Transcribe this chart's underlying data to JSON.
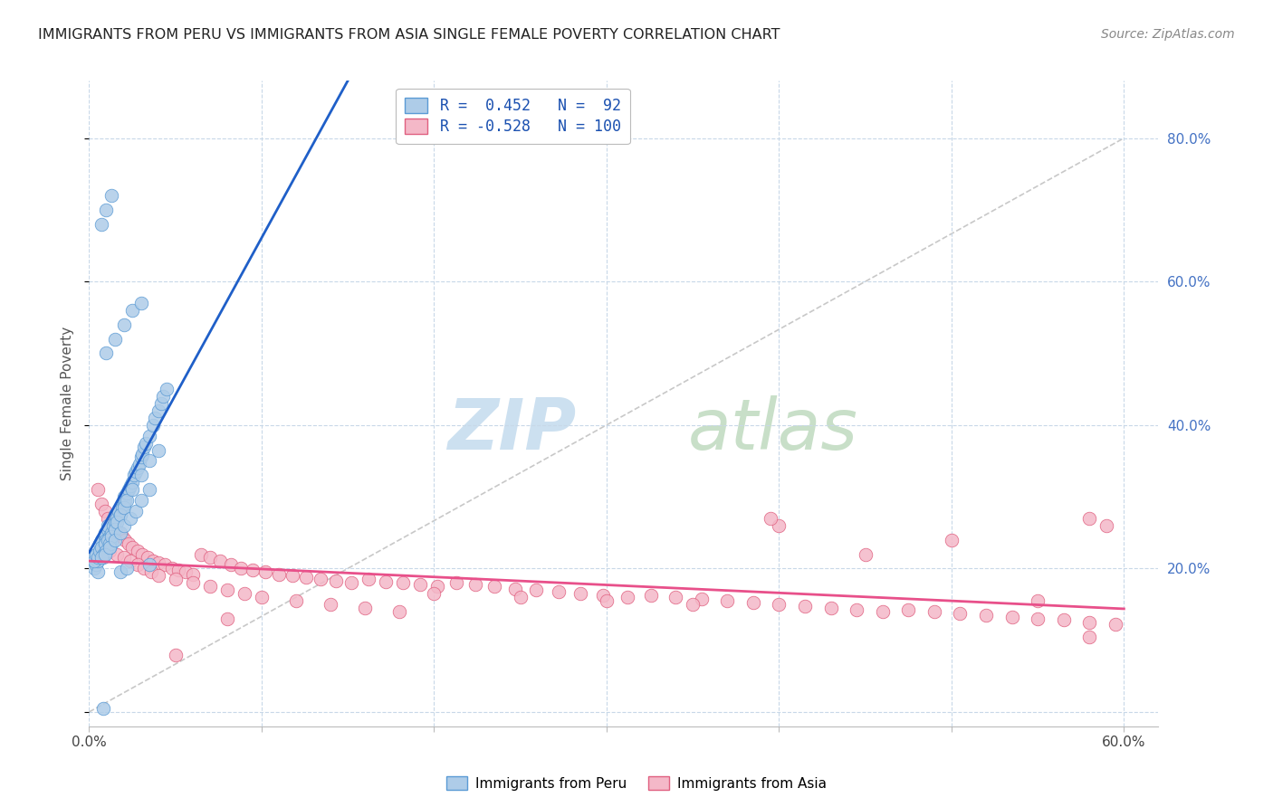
{
  "title": "IMMIGRANTS FROM PERU VS IMMIGRANTS FROM ASIA SINGLE FEMALE POVERTY CORRELATION CHART",
  "source": "Source: ZipAtlas.com",
  "ylabel": "Single Female Poverty",
  "xlim": [
    0.0,
    0.62
  ],
  "ylim": [
    -0.02,
    0.88
  ],
  "xlim_display_max": 0.6,
  "ylim_display_max": 0.8,
  "peru_color": "#aecce8",
  "peru_edge_color": "#5b9bd5",
  "asia_color": "#f4b8c8",
  "asia_edge_color": "#e06080",
  "peru_line_color": "#1f5fc8",
  "asia_line_color": "#e8508a",
  "diag_line_color": "#c8c8c8",
  "background_color": "#ffffff",
  "grid_color": "#c8d8e8",
  "right_tick_color": "#4472c4",
  "watermark_zip_color": "#cce0f0",
  "watermark_atlas_color": "#c8dfc8",
  "peru_R": 0.452,
  "peru_N": 92,
  "asia_R": -0.528,
  "asia_N": 100,
  "peru_scatter_x": [
    0.002,
    0.003,
    0.004,
    0.005,
    0.005,
    0.006,
    0.006,
    0.007,
    0.007,
    0.008,
    0.008,
    0.009,
    0.009,
    0.01,
    0.01,
    0.011,
    0.011,
    0.012,
    0.012,
    0.013,
    0.013,
    0.014,
    0.015,
    0.015,
    0.016,
    0.017,
    0.018,
    0.019,
    0.02,
    0.02,
    0.021,
    0.022,
    0.023,
    0.024,
    0.025,
    0.026,
    0.027,
    0.028,
    0.029,
    0.03,
    0.031,
    0.032,
    0.033,
    0.035,
    0.037,
    0.038,
    0.04,
    0.042,
    0.043,
    0.045,
    0.003,
    0.004,
    0.005,
    0.006,
    0.007,
    0.008,
    0.009,
    0.01,
    0.011,
    0.012,
    0.013,
    0.015,
    0.016,
    0.018,
    0.02,
    0.022,
    0.025,
    0.03,
    0.035,
    0.04,
    0.007,
    0.009,
    0.012,
    0.015,
    0.018,
    0.02,
    0.024,
    0.027,
    0.03,
    0.035,
    0.01,
    0.015,
    0.02,
    0.025,
    0.03,
    0.007,
    0.01,
    0.013,
    0.008,
    0.018,
    0.022,
    0.035
  ],
  "peru_scatter_y": [
    0.215,
    0.2,
    0.205,
    0.195,
    0.21,
    0.225,
    0.235,
    0.22,
    0.24,
    0.215,
    0.23,
    0.245,
    0.25,
    0.225,
    0.24,
    0.255,
    0.26,
    0.23,
    0.245,
    0.235,
    0.25,
    0.26,
    0.265,
    0.275,
    0.27,
    0.28,
    0.275,
    0.285,
    0.29,
    0.3,
    0.295,
    0.305,
    0.31,
    0.315,
    0.32,
    0.33,
    0.335,
    0.34,
    0.345,
    0.355,
    0.36,
    0.37,
    0.375,
    0.385,
    0.4,
    0.41,
    0.42,
    0.43,
    0.44,
    0.45,
    0.21,
    0.22,
    0.215,
    0.225,
    0.23,
    0.22,
    0.235,
    0.225,
    0.24,
    0.235,
    0.245,
    0.255,
    0.265,
    0.275,
    0.285,
    0.295,
    0.31,
    0.33,
    0.35,
    0.365,
    0.215,
    0.22,
    0.23,
    0.24,
    0.25,
    0.26,
    0.27,
    0.28,
    0.295,
    0.31,
    0.5,
    0.52,
    0.54,
    0.56,
    0.57,
    0.68,
    0.7,
    0.72,
    0.005,
    0.195,
    0.2,
    0.205
  ],
  "asia_scatter_x": [
    0.005,
    0.007,
    0.009,
    0.011,
    0.013,
    0.015,
    0.017,
    0.019,
    0.021,
    0.023,
    0.025,
    0.028,
    0.031,
    0.034,
    0.037,
    0.04,
    0.044,
    0.048,
    0.052,
    0.056,
    0.06,
    0.065,
    0.07,
    0.076,
    0.082,
    0.088,
    0.095,
    0.102,
    0.11,
    0.118,
    0.126,
    0.134,
    0.143,
    0.152,
    0.162,
    0.172,
    0.182,
    0.192,
    0.202,
    0.213,
    0.224,
    0.235,
    0.247,
    0.259,
    0.272,
    0.285,
    0.298,
    0.312,
    0.326,
    0.34,
    0.355,
    0.37,
    0.385,
    0.4,
    0.415,
    0.43,
    0.445,
    0.46,
    0.475,
    0.49,
    0.505,
    0.52,
    0.535,
    0.55,
    0.565,
    0.58,
    0.595,
    0.008,
    0.012,
    0.016,
    0.02,
    0.024,
    0.028,
    0.032,
    0.036,
    0.04,
    0.05,
    0.06,
    0.07,
    0.08,
    0.09,
    0.1,
    0.12,
    0.14,
    0.16,
    0.18,
    0.2,
    0.25,
    0.3,
    0.35,
    0.4,
    0.45,
    0.5,
    0.55,
    0.58,
    0.59,
    0.58,
    0.395,
    0.05,
    0.08
  ],
  "asia_scatter_y": [
    0.31,
    0.29,
    0.28,
    0.27,
    0.26,
    0.255,
    0.25,
    0.245,
    0.24,
    0.235,
    0.23,
    0.225,
    0.22,
    0.215,
    0.21,
    0.208,
    0.205,
    0.2,
    0.198,
    0.195,
    0.192,
    0.22,
    0.215,
    0.21,
    0.205,
    0.2,
    0.198,
    0.195,
    0.192,
    0.19,
    0.188,
    0.185,
    0.183,
    0.18,
    0.185,
    0.182,
    0.18,
    0.178,
    0.175,
    0.18,
    0.178,
    0.175,
    0.172,
    0.17,
    0.168,
    0.165,
    0.163,
    0.16,
    0.162,
    0.16,
    0.158,
    0.155,
    0.152,
    0.15,
    0.148,
    0.145,
    0.143,
    0.14,
    0.142,
    0.14,
    0.138,
    0.135,
    0.132,
    0.13,
    0.128,
    0.125,
    0.122,
    0.23,
    0.225,
    0.22,
    0.215,
    0.21,
    0.205,
    0.2,
    0.195,
    0.19,
    0.185,
    0.18,
    0.175,
    0.17,
    0.165,
    0.16,
    0.155,
    0.15,
    0.145,
    0.14,
    0.165,
    0.16,
    0.155,
    0.15,
    0.26,
    0.22,
    0.24,
    0.155,
    0.27,
    0.26,
    0.105,
    0.27,
    0.08,
    0.13
  ]
}
